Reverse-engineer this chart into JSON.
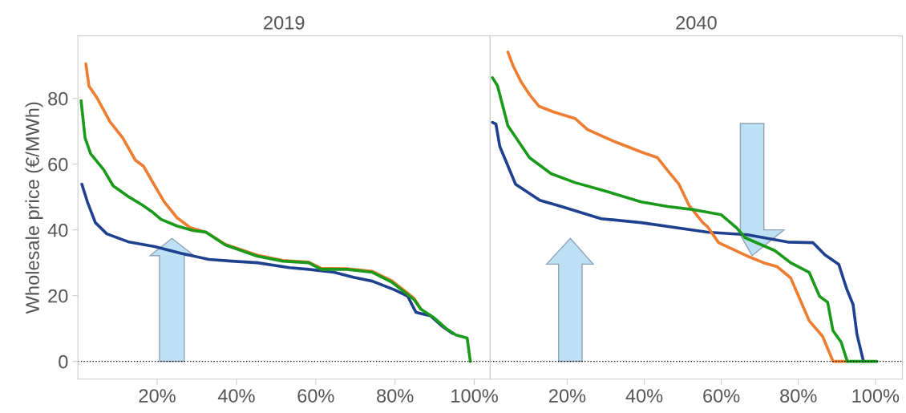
{
  "chart_data": [
    {
      "type": "line",
      "title": "2019",
      "ylabel": "Wholesale price (€/MWh)",
      "xlim": [
        0,
        104
      ],
      "ylim": [
        -5.4,
        99
      ],
      "xticks": [
        {
          "value": 20,
          "label": "20%"
        },
        {
          "value": 40,
          "label": "40%"
        },
        {
          "value": 60,
          "label": "60%"
        },
        {
          "value": 80,
          "label": "80%"
        },
        {
          "value": 100,
          "label": "100%"
        }
      ],
      "yticks": [
        0,
        20,
        40,
        60,
        80
      ],
      "grid": false,
      "legend": false,
      "line_style": "solid",
      "ref_lines": [
        {
          "axis": "y",
          "value": 0,
          "color": "#000000",
          "line_style": "dotted"
        }
      ],
      "series": [
        {
          "color": "#1f3f8f",
          "x": [
            1,
            2.4,
            4.4,
            7.3,
            12.9,
            19.4,
            25.9,
            33.1,
            38.8,
            45.3,
            53.3,
            58.2,
            64.6,
            69.5,
            74.3,
            80,
            83.2,
            85.3,
            88.9,
            92.1,
            94.5
          ],
          "values": [
            53.9,
            48.5,
            42.2,
            38.8,
            36.3,
            34.9,
            32.9,
            31,
            30.5,
            30,
            28.5,
            28,
            27.1,
            25.6,
            24.4,
            21.7,
            19.8,
            14.9,
            13.9,
            10.5,
            8.5
          ]
        },
        {
          "color": "#ed7d31",
          "x": [
            2,
            2.8,
            4.8,
            8.1,
            11.3,
            14.5,
            16.6,
            19.4,
            21.8,
            25,
            28.3,
            32.3,
            37.2,
            45.3,
            51.7,
            58.2,
            61.4,
            67.9,
            74.3,
            79.2,
            84.8,
            86.5
          ],
          "values": [
            90.5,
            83.7,
            80.2,
            72.9,
            68,
            61.2,
            59.3,
            53.4,
            48.5,
            43.7,
            40.7,
            39.3,
            35.6,
            32.3,
            30.7,
            30.2,
            28.3,
            28.2,
            27.4,
            24.5,
            19.2,
            16
          ]
        },
        {
          "color": "#1a9a1a",
          "x": [
            0.8,
            1.8,
            3.2,
            6.5,
            8.9,
            12.9,
            16.2,
            18.6,
            21,
            25,
            29.1,
            32.3,
            37.2,
            45.3,
            51.7,
            58.2,
            61.4,
            67.9,
            74.3,
            79.2,
            84.8,
            86.5,
            89.7,
            92.9,
            95.4,
            98.2,
            99
          ],
          "values": [
            79.3,
            68,
            63.2,
            58.3,
            53.4,
            50,
            47.6,
            45.6,
            43.2,
            41.2,
            39.8,
            39.3,
            35.4,
            32,
            30.5,
            30,
            28,
            28,
            27.1,
            24.1,
            18.8,
            15.9,
            13.4,
            10,
            8,
            7.1,
            0
          ]
        }
      ]
    },
    {
      "type": "line",
      "title": "2040",
      "xlim": [
        0,
        107
      ],
      "ylim": [
        -5.4,
        99
      ],
      "xticks": [
        {
          "value": 20,
          "label": "20%"
        },
        {
          "value": 40,
          "label": "40%"
        },
        {
          "value": 60,
          "label": "60%"
        },
        {
          "value": 80,
          "label": "80%"
        },
        {
          "value": 100,
          "label": "100%"
        }
      ],
      "yticks": [
        0,
        20,
        40,
        60,
        80
      ],
      "tick_labels": "x",
      "grid": false,
      "legend": false,
      "line_style": "solid",
      "ref_lines": [
        {
          "axis": "y",
          "value": 0,
          "color": "#000000",
          "line_style": "dotted"
        }
      ],
      "series": [
        {
          "color": "#1f3f8f",
          "x": [
            0.6,
            1.5,
            2.5,
            6.6,
            12.9,
            18.5,
            28.8,
            39.2,
            56.4,
            66.8,
            77.2,
            83.8,
            86.9,
            90.5,
            92.5,
            94.2,
            95.2,
            96.9
          ],
          "values": [
            72.7,
            72.2,
            65.4,
            53.9,
            49,
            47.1,
            43.4,
            42.2,
            39.3,
            38.5,
            36.3,
            36.1,
            32.4,
            29.5,
            22.2,
            17.3,
            8.3,
            0
          ]
        },
        {
          "color": "#ed7d31",
          "x": [
            4.6,
            6,
            8.1,
            10.2,
            12.7,
            16.4,
            22,
            25.3,
            32.4,
            39.2,
            43.4,
            46.1,
            49,
            51.7,
            55.2,
            56.4,
            59.3,
            66.8,
            71,
            74.5,
            78,
            82.8,
            86.3,
            89,
            92.5
          ],
          "values": [
            94.1,
            89.8,
            84.9,
            81.2,
            77.6,
            75.9,
            73.9,
            70.5,
            66.8,
            63.7,
            62,
            58,
            53.9,
            47.3,
            42.2,
            41,
            36.1,
            32,
            30,
            28.8,
            25.4,
            12.4,
            7.6,
            0,
            0
          ]
        },
        {
          "color": "#1a9a1a",
          "x": [
            0.6,
            1.9,
            4.6,
            10.2,
            15.8,
            22,
            28.8,
            39.2,
            46.1,
            53.1,
            60,
            64.1,
            66.2,
            73.9,
            78,
            82.8,
            85.5,
            87.6,
            89,
            91.1,
            92.7,
            100.4
          ],
          "values": [
            86.3,
            83.9,
            71.7,
            62,
            57.1,
            54.4,
            52.2,
            48.5,
            47.1,
            46.1,
            44.6,
            40.5,
            37.6,
            33.7,
            30,
            27.1,
            19.8,
            18,
            9.3,
            5.9,
            0,
            0
          ]
        }
      ]
    }
  ]
}
